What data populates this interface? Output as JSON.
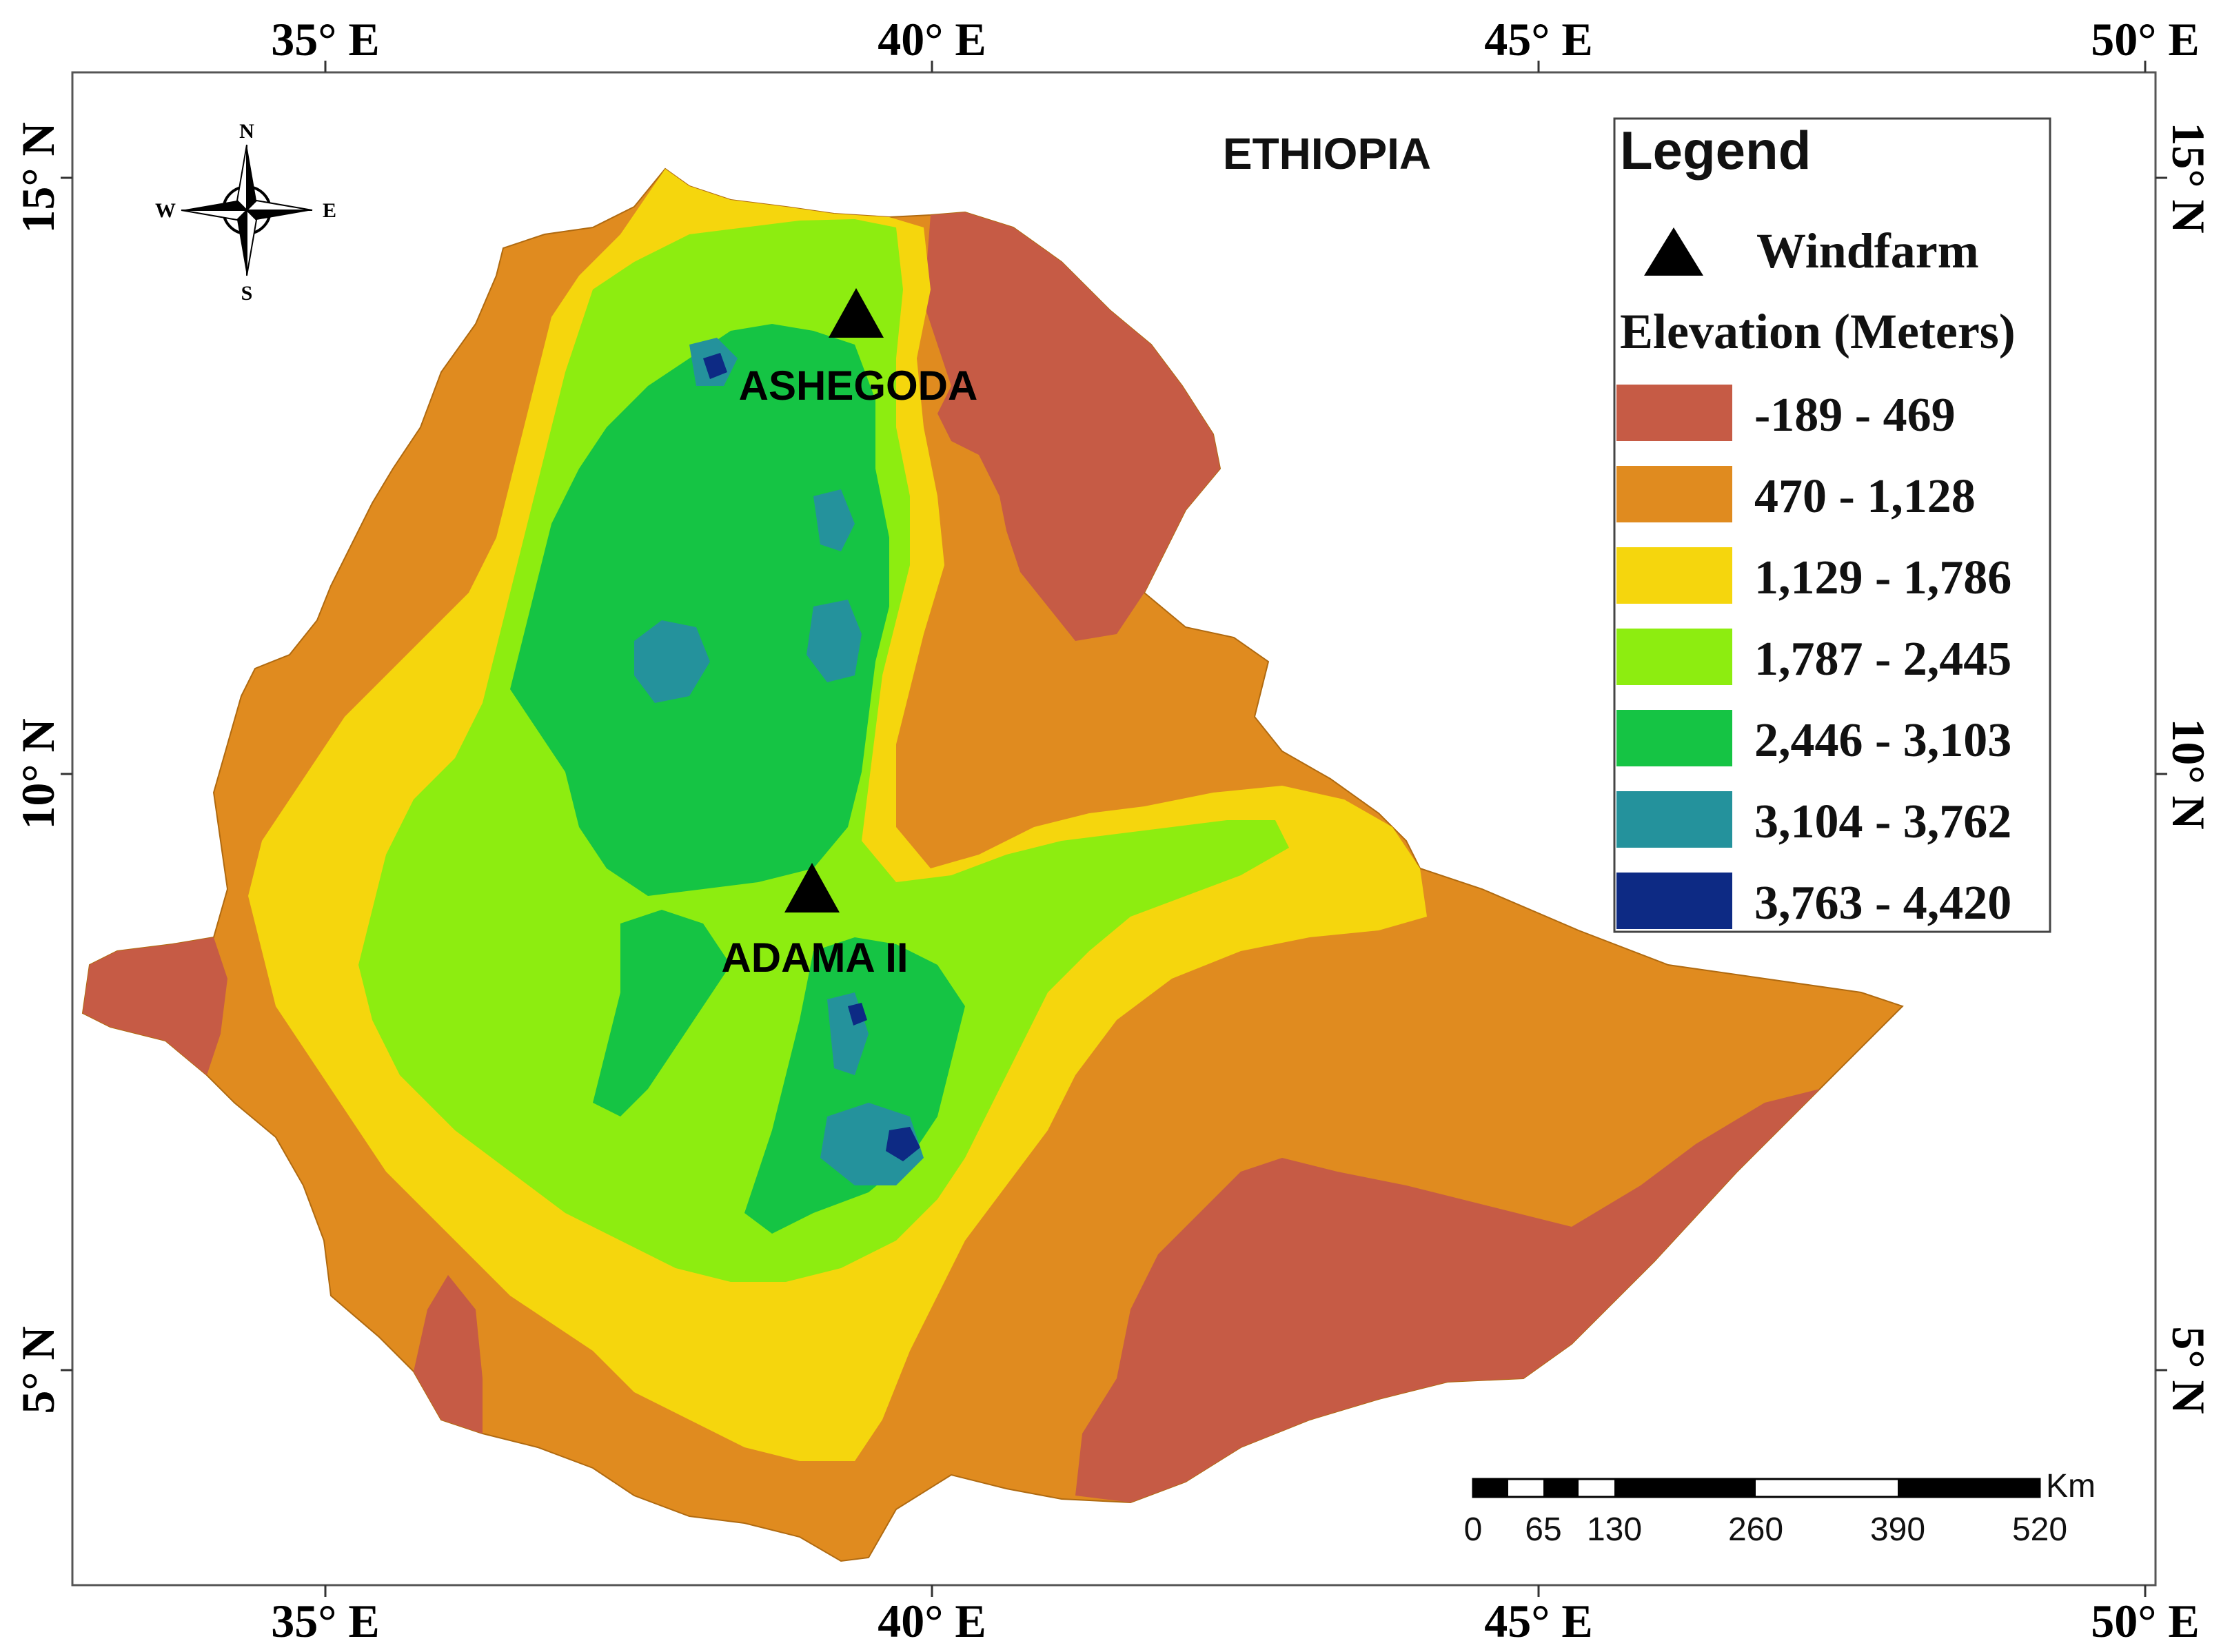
{
  "map": {
    "title": "ETHIOPIA",
    "graticule": {
      "longitudes": [
        "35° E",
        "40° E",
        "45° E",
        "50° E"
      ],
      "latitudes": [
        "15° N",
        "10° N",
        "5° N"
      ]
    },
    "north_arrow": {
      "n": "N",
      "s": "S",
      "e": "E",
      "w": "W"
    },
    "sites": [
      {
        "name": "ASHEGODA",
        "type": "Windfarm"
      },
      {
        "name": "ADAMA II",
        "type": "Windfarm"
      }
    ],
    "elevation_colors": {
      "c1": "#c65b45",
      "c2": "#e08b1f",
      "c3": "#f5d60d",
      "c4": "#8ded10",
      "c5": "#15c444",
      "c6": "#24929c",
      "c7": "#0d2a84"
    }
  },
  "legend": {
    "title": "Legend",
    "windfarm_label": "Windfarm",
    "elevation_title": "Elevation (Meters)",
    "classes": [
      {
        "label": "-189 - 469",
        "color": "#c65b45"
      },
      {
        "label": "470 - 1,128",
        "color": "#e08b1f"
      },
      {
        "label": "1,129 - 1,786",
        "color": "#f5d60d"
      },
      {
        "label": "1,787 - 2,445",
        "color": "#8ded10"
      },
      {
        "label": "2,446 - 3,103",
        "color": "#15c444"
      },
      {
        "label": "3,104 - 3,762",
        "color": "#24929c"
      },
      {
        "label": "3,763 - 4,420",
        "color": "#0d2a84"
      }
    ]
  },
  "scale_bar": {
    "unit": "Km",
    "ticks": [
      "0",
      "65",
      "130",
      "260",
      "390",
      "520"
    ]
  }
}
